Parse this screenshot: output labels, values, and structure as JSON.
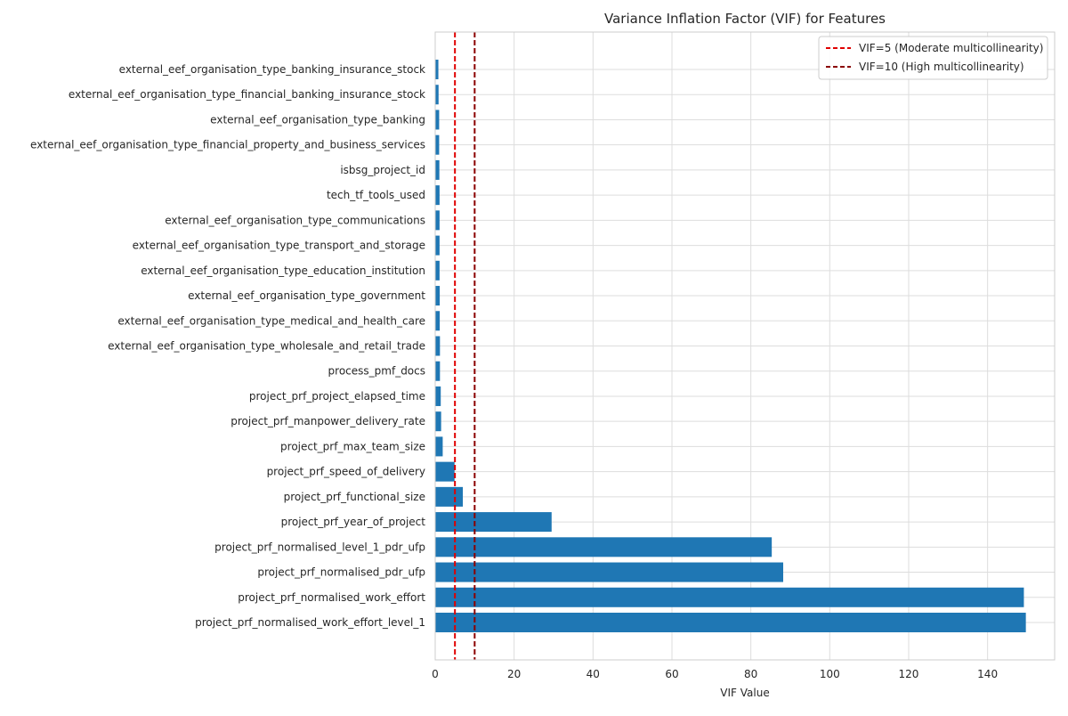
{
  "chart_data": {
    "type": "bar",
    "orientation": "horizontal",
    "title": "Variance Inflation Factor (VIF) for Features",
    "xlabel": "VIF Value",
    "ylabel": "",
    "xlim": [
      0,
      157
    ],
    "xticks": [
      0,
      20,
      40,
      60,
      80,
      100,
      120,
      140
    ],
    "grid": true,
    "legend_position": "top-right",
    "bar_color": "#1f77b4",
    "categories": [
      "external_eef_organisation_type_banking_insurance_stock",
      "external_eef_organisation_type_financial_banking_insurance_stock",
      "external_eef_organisation_type_banking",
      "external_eef_organisation_type_financial_property_and_business_services",
      "isbsg_project_id",
      "tech_tf_tools_used",
      "external_eef_organisation_type_communications",
      "external_eef_organisation_type_transport_and_storage",
      "external_eef_organisation_type_education_institution",
      "external_eef_organisation_type_government",
      "external_eef_organisation_type_medical_and_health_care",
      "external_eef_organisation_type_wholesale_and_retail_trade",
      "process_pmf_docs",
      "project_prf_project_elapsed_time",
      "project_prf_manpower_delivery_rate",
      "project_prf_max_team_size",
      "project_prf_speed_of_delivery",
      "project_prf_functional_size",
      "project_prf_year_of_project",
      "project_prf_normalised_level_1_pdr_ufp",
      "project_prf_normalised_pdr_ufp",
      "project_prf_normalised_work_effort",
      "project_prf_normalised_work_effort_level_1"
    ],
    "values": [
      0.8,
      0.85,
      1.0,
      1.0,
      1.05,
      1.1,
      1.1,
      1.1,
      1.1,
      1.15,
      1.15,
      1.2,
      1.2,
      1.4,
      1.5,
      1.9,
      4.9,
      7.0,
      29.5,
      85.3,
      88.2,
      149.2,
      149.7
    ],
    "reference_lines": [
      {
        "value": 5,
        "label": "VIF=5 (Moderate multicollinearity)",
        "color": "#e00000"
      },
      {
        "value": 10,
        "label": "VIF=10 (High multicollinearity)",
        "color": "#8b0000"
      }
    ]
  }
}
